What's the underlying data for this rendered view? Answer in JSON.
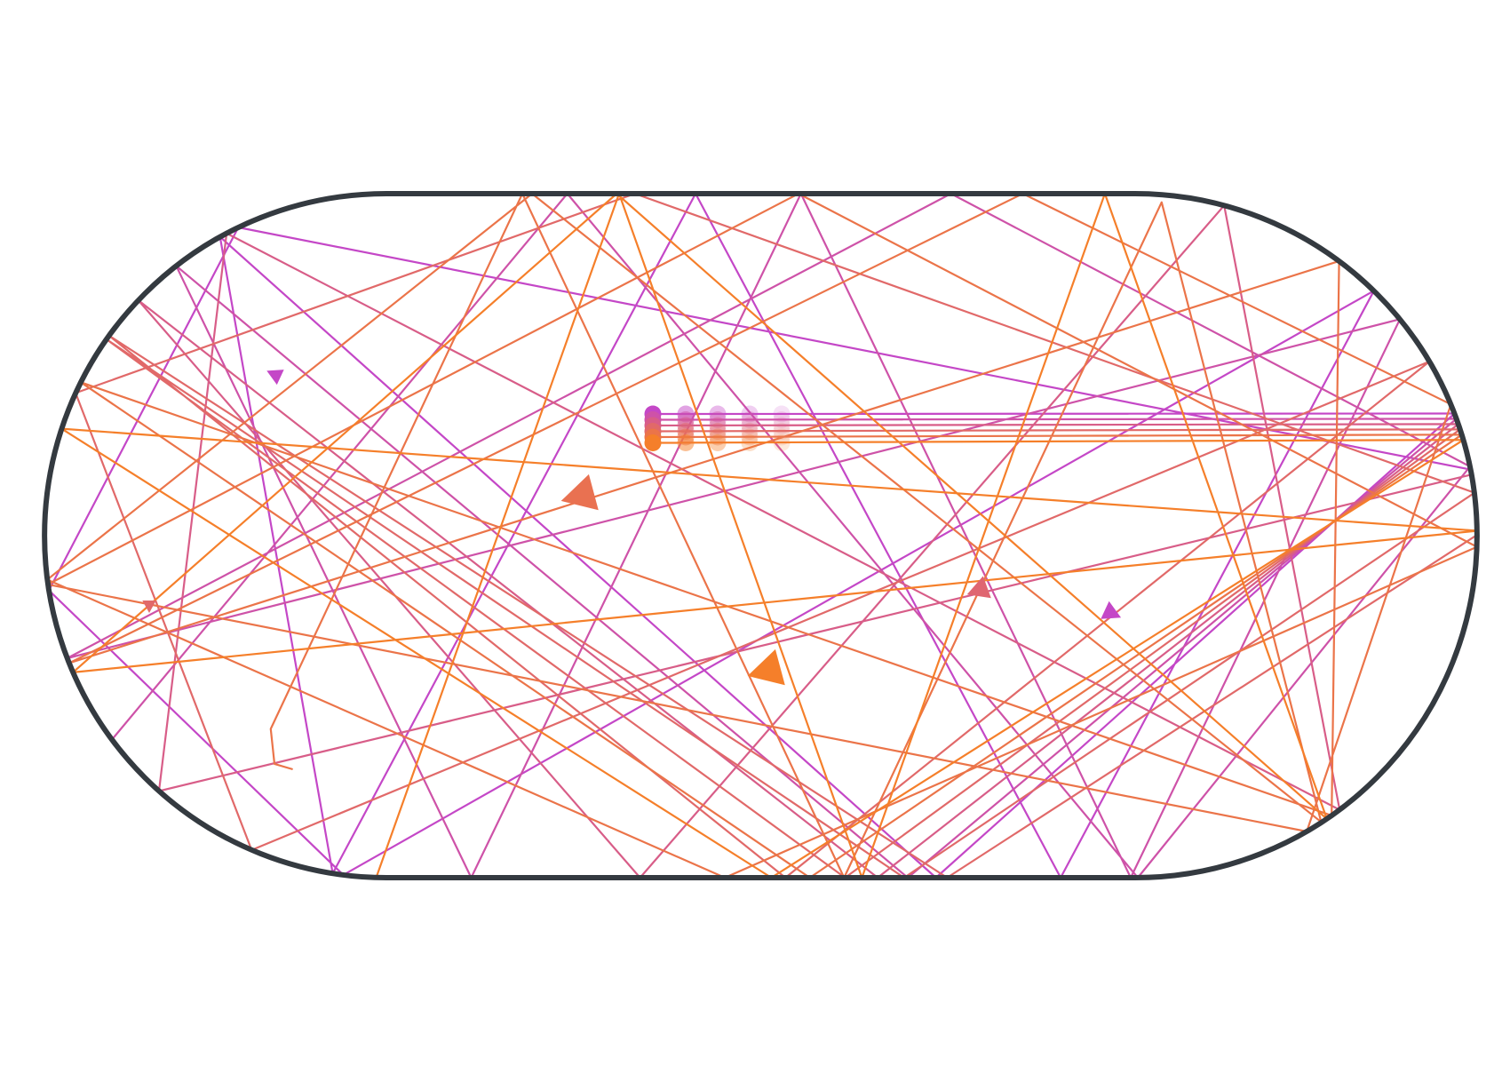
{
  "billiard": {
    "boundary_shape": "stadium",
    "boundary_color": "#343a40",
    "gradient_start_color": "#c447c7",
    "gradient_end_color": "#f57f2a",
    "particle_count": 6,
    "arrow_count": 7
  }
}
